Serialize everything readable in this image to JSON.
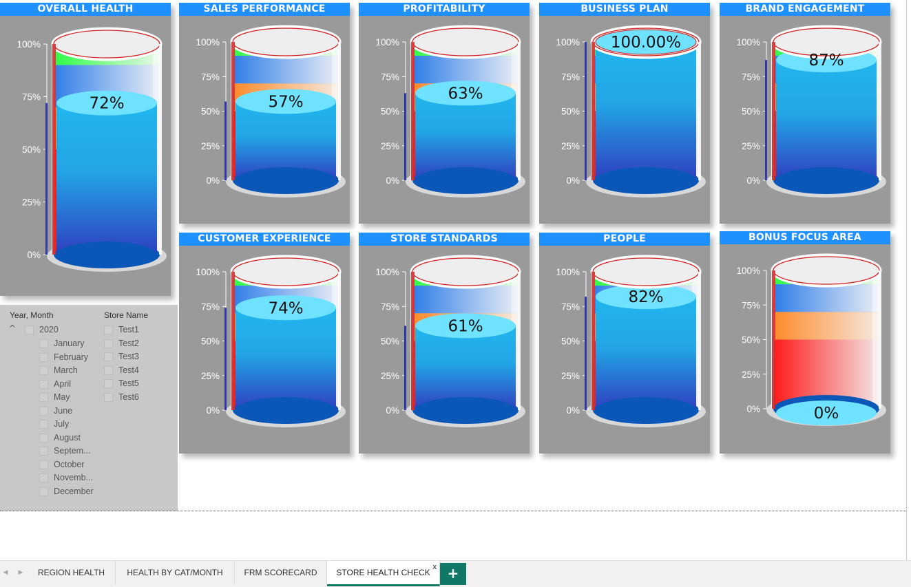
{
  "colors": {
    "card_bg": "#9a9a9a",
    "title_bg": "#1e90ff",
    "green_band": "#2dfc45",
    "blue_band": "#2f7de8",
    "orange_band": "#ff8a2a",
    "red_band": "#ff1a1a",
    "liquid_top": "#6fe2ff",
    "liquid_mid": "#21b6ee",
    "liquid_bottom": "#2f3fbf",
    "level_bar": "#3138a8",
    "tab_accent": "#117865"
  },
  "gauges": [
    {
      "id": "overall-health",
      "title": "OVERALL HEALTH",
      "value": 0.72,
      "label": "72%",
      "ticks": [
        "100%",
        "75%",
        "50%",
        "25%",
        "0%"
      ]
    },
    {
      "id": "sales-performance",
      "title": "SALES PERFORMANCE",
      "value": 0.57,
      "label": "57%",
      "ticks": [
        "100%",
        "75%",
        "50%",
        "25%",
        "0%"
      ]
    },
    {
      "id": "profitability",
      "title": "PROFITABILITY",
      "value": 0.63,
      "label": "63%",
      "ticks": [
        "100%",
        "75%",
        "50%",
        "25%",
        "0%"
      ]
    },
    {
      "id": "business-plan",
      "title": "BUSINESS PLAN",
      "value": 1.0,
      "label": "100.00%",
      "ticks": [
        "100%",
        "75%",
        "50%",
        "25%",
        "0%"
      ]
    },
    {
      "id": "brand-engagement",
      "title": "BRAND ENGAGEMENT",
      "value": 0.87,
      "label": "87%",
      "ticks": [
        "100%",
        "75%",
        "50%",
        "25%",
        "0%"
      ]
    },
    {
      "id": "customer-experience",
      "title": "CUSTOMER EXPERIENCE",
      "value": 0.74,
      "label": "74%",
      "ticks": [
        "100%",
        "75%",
        "50%",
        "25%",
        "0%"
      ]
    },
    {
      "id": "store-standards",
      "title": "STORE STANDARDS",
      "value": 0.61,
      "label": "61%",
      "ticks": [
        "100%",
        "75%",
        "50%",
        "25%",
        "0%"
      ]
    },
    {
      "id": "people",
      "title": "PEOPLE",
      "value": 0.82,
      "label": "82%",
      "ticks": [
        "100%",
        "75%",
        "50%",
        "25%",
        "0%"
      ]
    },
    {
      "id": "bonus-focus-area",
      "title": "BONUS FOCUS AREA",
      "value": 0.0,
      "label": "0%",
      "ticks": [
        "100%",
        "75%",
        "50%",
        "25%",
        "0%"
      ]
    }
  ],
  "filters": {
    "date": {
      "header": "Year, Month",
      "year": "2020",
      "months": [
        "January",
        "February",
        "March",
        "April",
        "May",
        "June",
        "July",
        "August",
        "Septem...",
        "October",
        "Novemb...",
        "December"
      ]
    },
    "store": {
      "header": "Store Name",
      "stores": [
        "Test1",
        "Test2",
        "Test3",
        "Test4",
        "Test5",
        "Test6"
      ]
    }
  },
  "tabs": {
    "items": [
      "REGION HEALTH",
      "HEALTH BY CAT/MONTH",
      "FRM SCORECARD",
      "STORE HEALTH CHECK"
    ],
    "active": "STORE HEALTH CHECK",
    "close": "x",
    "add": "+"
  }
}
